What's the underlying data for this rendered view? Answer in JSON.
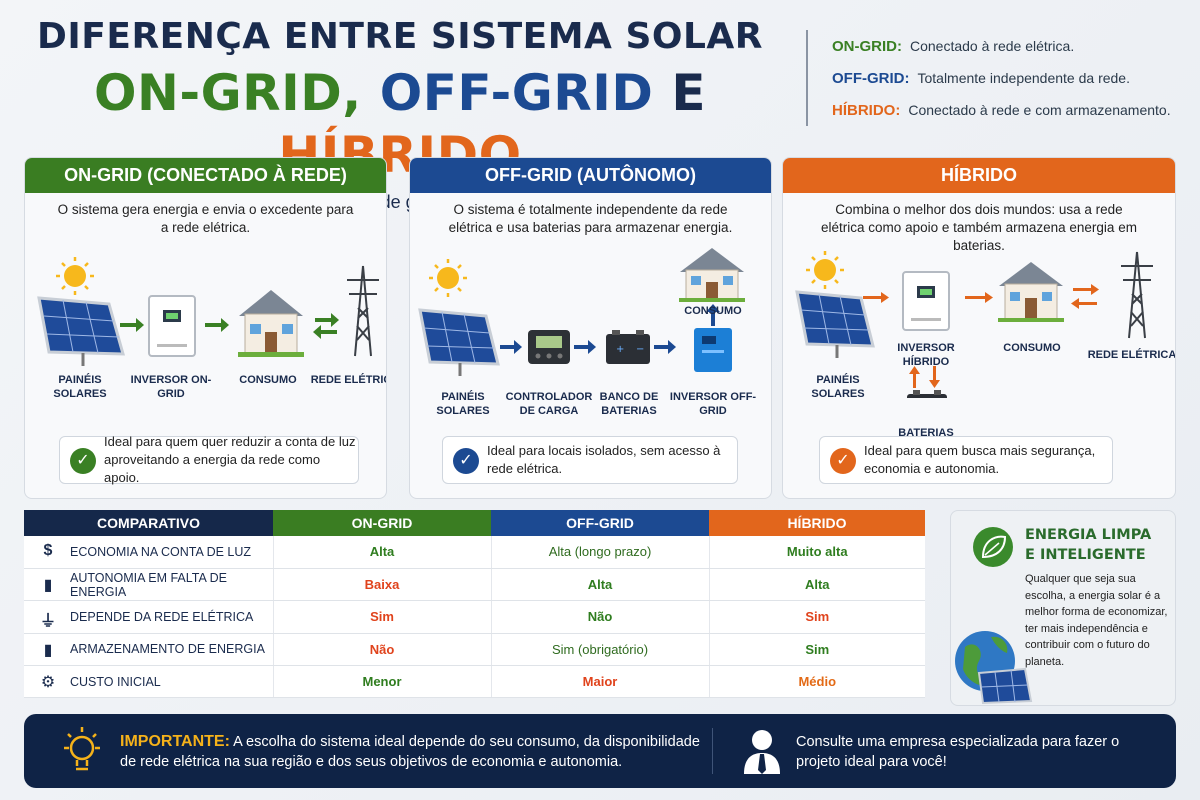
{
  "header": {
    "title_line1": "DIFERENÇA ENTRE SISTEMA SOLAR",
    "ongrid": "ON-GRID,",
    "offgrid": "OFF-GRID",
    "e": "E",
    "hibrido": "HÍBRIDO",
    "subtitle": "Três formas inteligentes de gerar e usar energia solar."
  },
  "legend": [
    {
      "key": "ON-GRID:",
      "text": "Conectado à rede elétrica.",
      "color": "#3a8024"
    },
    {
      "key": "OFF-GRID:",
      "text": "Totalmente independente da rede.",
      "color": "#1c4a92"
    },
    {
      "key": "HÍBRIDO:",
      "text": "Conectado à rede e com armazenamento.",
      "color": "#e2661c"
    }
  ],
  "cards": {
    "ongrid": {
      "title": "ON-GRID (CONECTADO À REDE)",
      "desc": "O sistema gera energia e envia o excedente para a rede elétrica.",
      "labels": [
        "PAINÉIS SOLARES",
        "INVERSOR ON-GRID",
        "CONSUMO",
        "REDE ELÉTRICA"
      ],
      "note": "Ideal para quem quer reduzir a conta de luz aproveitando a energia da rede como apoio.",
      "color": "#3a7d22"
    },
    "offgrid": {
      "title": "OFF-GRID (AUTÔNOMO)",
      "desc": "O sistema é totalmente independente da rede elétrica e usa baterias para armazenar energia.",
      "labels": [
        "PAINÉIS SOLARES",
        "CONTROLADOR DE CARGA",
        "BANCO DE BATERIAS",
        "INVERSOR OFF-GRID",
        "CONSUMO"
      ],
      "note": "Ideal para locais isolados, sem acesso à rede elétrica.",
      "color": "#1c4a92"
    },
    "hibrido": {
      "title": "HÍBRIDO",
      "desc": "Combina o melhor dos dois mundos: usa a rede elétrica como apoio e também armazena energia em baterias.",
      "labels": [
        "PAINÉIS SOLARES",
        "INVERSOR HÍBRIDO",
        "CONSUMO",
        "REDE ELÉTRICA",
        "BATERIAS"
      ],
      "note": "Ideal para quem busca mais segurança, economia e autonomia.",
      "color": "#e2661c"
    }
  },
  "table": {
    "headers": [
      "COMPARATIVO",
      "ON-GRID",
      "OFF-GRID",
      "HÍBRIDO"
    ],
    "header_colors": [
      "#15284a",
      "#3a7d22",
      "#1c4a92",
      "#e2661c"
    ],
    "rows": [
      {
        "icon": "$",
        "feature": "ECONOMIA NA CONTA DE LUZ",
        "values": [
          "Alta",
          "Alta (longo prazo)",
          "Muito alta"
        ],
        "cls": [
          "green",
          "ok",
          "green"
        ]
      },
      {
        "icon": "▮",
        "feature": "AUTONOMIA EM FALTA DE ENERGIA",
        "values": [
          "Baixa",
          "Alta",
          "Alta"
        ],
        "cls": [
          "red",
          "green",
          "green"
        ]
      },
      {
        "icon": "⏚",
        "feature": "DEPENDE DA REDE ELÉTRICA",
        "values": [
          "Sim",
          "Não",
          "Sim"
        ],
        "cls": [
          "red",
          "green",
          "red"
        ]
      },
      {
        "icon": "▮",
        "feature": "ARMAZENAMENTO DE ENERGIA",
        "values": [
          "Não",
          "Sim (obrigatório)",
          "Sim"
        ],
        "cls": [
          "red",
          "ok",
          "green"
        ]
      },
      {
        "icon": "⚙",
        "feature": "CUSTO INICIAL",
        "values": [
          "Menor",
          "Maior",
          "Médio"
        ],
        "cls": [
          "green",
          "red",
          "orange"
        ]
      }
    ]
  },
  "energia": {
    "title_line1": "ENERGIA LIMPA",
    "title_line2": "E INTELIGENTE",
    "text": "Qualquer que seja sua escolha, a energia solar é a melhor forma de economizar, ter mais independência e contribuir com o futuro do planeta."
  },
  "banner": {
    "important_label": "IMPORTANTE:",
    "important_text": "A escolha do sistema ideal depende do seu consumo, da disponibilidade de rede elétrica na sua região e dos seus objetivos de economia e autonomia.",
    "right_text": "Consulte uma empresa especializada para fazer o projeto ideal para você!"
  }
}
